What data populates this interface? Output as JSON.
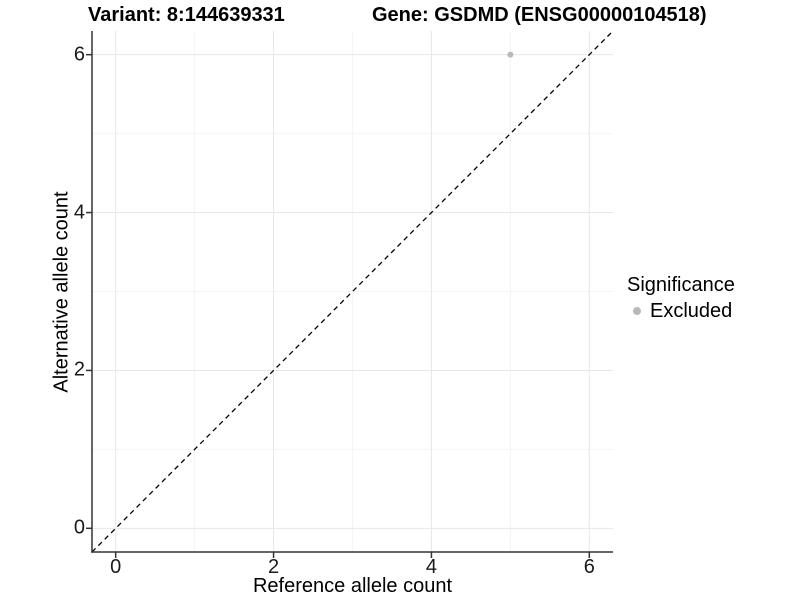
{
  "chart_data": {
    "type": "scatter",
    "titles": {
      "left": "Variant: 8:144639331",
      "right": "Gene: GSDMD (ENSG00000104518)"
    },
    "xlabel": "Reference allele count",
    "ylabel": "Alternative allele count",
    "xlim": [
      -0.3,
      6.3
    ],
    "ylim": [
      -0.3,
      6.3
    ],
    "x_major_ticks": [
      0,
      2,
      4,
      6
    ],
    "y_major_ticks": [
      0,
      2,
      4,
      6
    ],
    "x_minor_ticks": [
      1,
      3,
      5
    ],
    "y_minor_ticks": [
      1,
      3,
      5
    ],
    "grid": "major and minor gridlines on white background",
    "identity_line": {
      "x1": -0.3,
      "y1": -0.3,
      "x2": 6.3,
      "y2": 6.3,
      "style": "dashed",
      "color": "#000000"
    },
    "series": [
      {
        "name": "Excluded",
        "color": "#b9b9b9",
        "points": [
          {
            "x": 5,
            "y": 6
          }
        ]
      }
    ],
    "legend": {
      "title": "Significance",
      "position": "right",
      "entries": [
        {
          "label": "Excluded",
          "color": "#b9b9b9",
          "marker": "circle"
        }
      ]
    }
  },
  "colors": {
    "background": "#ffffff",
    "grid_major": "#e7e7e7",
    "grid_minor": "#f4f4f4",
    "axis_line": "#333333",
    "tick_mark": "#333333",
    "point": "#b9b9b9"
  }
}
